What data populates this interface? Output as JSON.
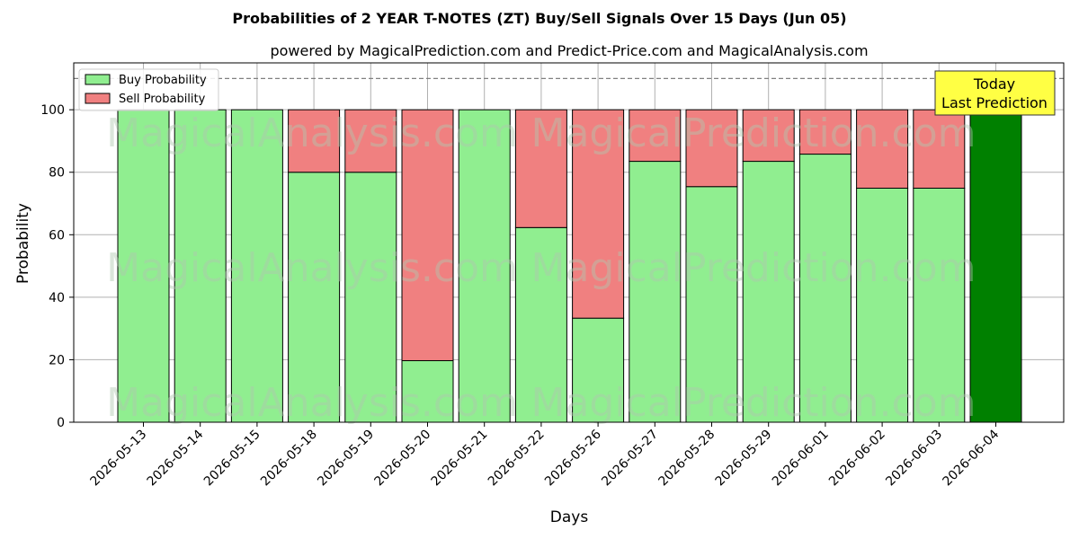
{
  "title": "Probabilities of 2 YEAR T-NOTES (ZT) Buy/Sell Signals Over 15 Days (Jun 05)",
  "subtitle": "powered by MagicalPrediction.com and Predict-Price.com and MagicalAnalysis.com",
  "watermarks": [
    "MagicalAnalysis.com",
    "MagicalPrediction.com"
  ],
  "annotation": {
    "line1": "Today",
    "line2": "Last Prediction"
  },
  "colors": {
    "buy": "#90ee90",
    "sell": "#f08080",
    "today": "#008000",
    "annotation_bg": "#ffff44",
    "grid": "#b0b0b0"
  },
  "chart_data": {
    "type": "bar",
    "stacked": true,
    "xlabel": "Days",
    "ylabel": "Probability",
    "ylim": [
      0,
      115
    ],
    "yticks": [
      0,
      20,
      40,
      60,
      80,
      100
    ],
    "reference_line": 110,
    "grid": true,
    "legend_position": "top-left",
    "categories": [
      "2026-05-13",
      "2026-05-14",
      "2026-05-15",
      "2026-05-18",
      "2026-05-19",
      "2026-05-20",
      "2026-05-21",
      "2026-05-22",
      "2026-05-26",
      "2026-05-27",
      "2026-05-28",
      "2026-05-29",
      "2026-06-01",
      "2026-06-02",
      "2026-06-03",
      "2026-06-04"
    ],
    "series": [
      {
        "name": "Buy Probability",
        "values": [
          100,
          100,
          100,
          80,
          80,
          19.7,
          100,
          62.3,
          33.3,
          83.5,
          75.4,
          83.5,
          85.8,
          74.9,
          74.9,
          100
        ]
      },
      {
        "name": "Sell Probability",
        "values": [
          0,
          0,
          0,
          20,
          20,
          80.3,
          0,
          37.7,
          66.7,
          16.5,
          24.6,
          16.5,
          14.2,
          25.1,
          25.1,
          0
        ]
      }
    ]
  }
}
